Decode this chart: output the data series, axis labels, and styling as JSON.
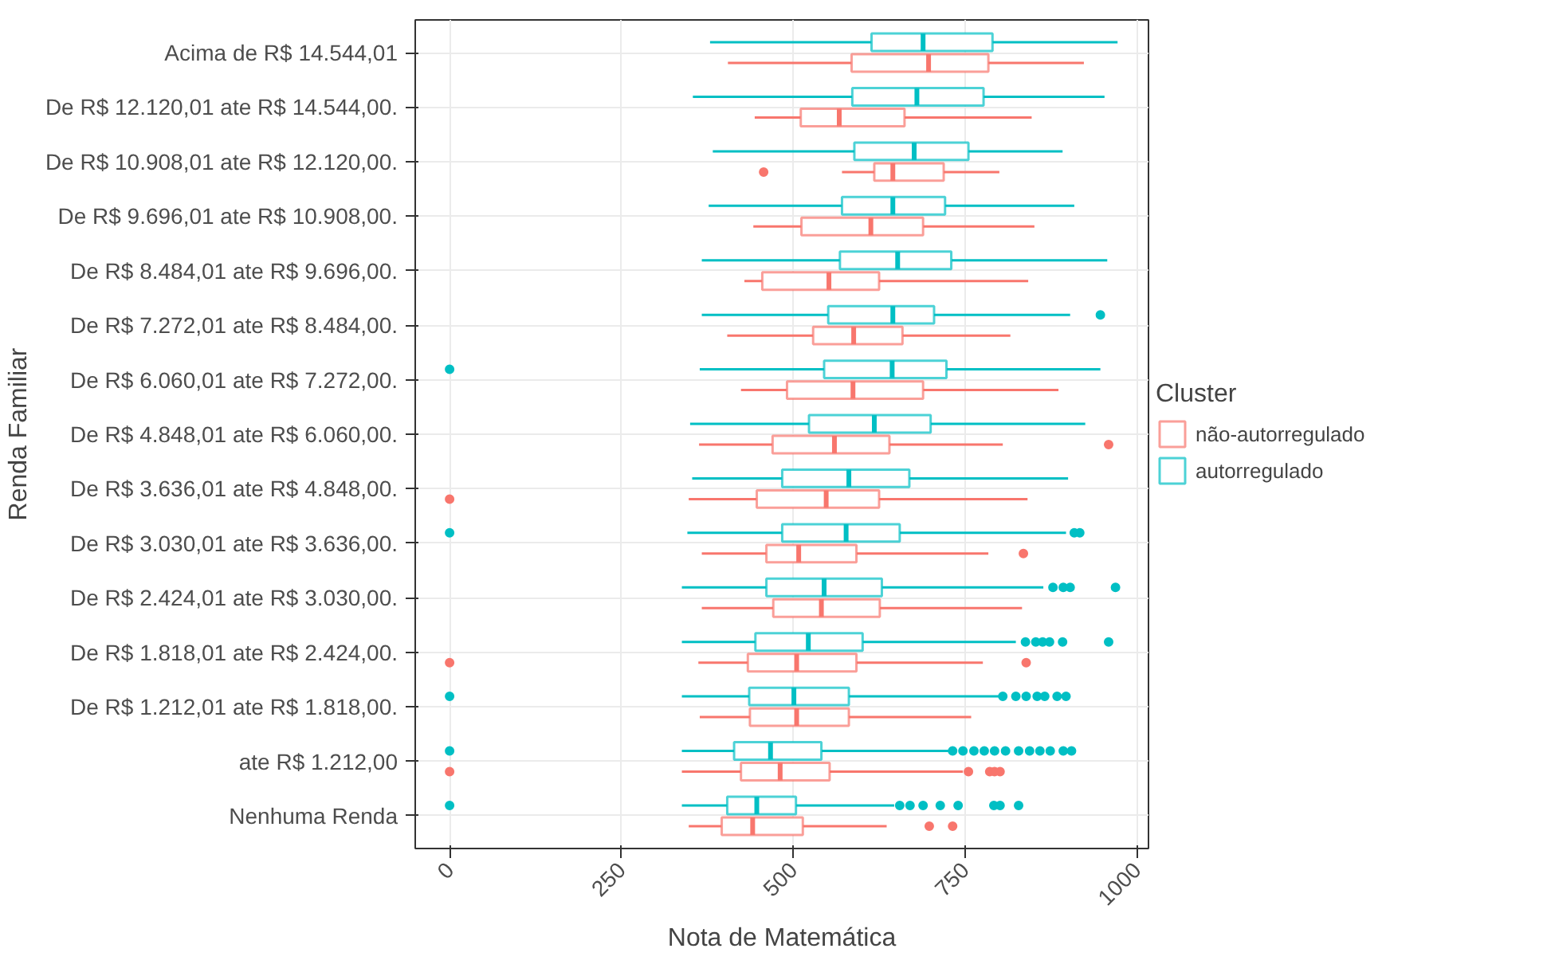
{
  "chart_data": {
    "type": "box",
    "orientation": "horizontal",
    "xlabel": "Nota de Matemática",
    "ylabel": "Renda Familiar",
    "legend_title": "Cluster",
    "legend": "right",
    "grid": true,
    "xlim": [
      -50,
      1017
    ],
    "xticks": [
      0,
      250,
      500,
      750,
      1000
    ],
    "categories": [
      "Acima de R$ 14.544,01",
      "De R$ 12.120,01 ate R$ 14.544,00.",
      "De R$ 10.908,01 ate R$ 12.120,00.",
      "De R$ 9.696,01 ate R$ 10.908,00.",
      "De R$ 8.484,01 ate R$ 9.696,00.",
      "De R$ 7.272,01 ate R$ 8.484,00.",
      "De R$ 6.060,01 ate R$ 7.272,00.",
      "De R$ 4.848,01 ate R$ 6.060,00.",
      "De R$ 3.636,01 ate R$ 4.848,00.",
      "De R$ 3.030,01 ate R$ 3.636,00.",
      "De R$ 2.424,01 ate R$ 3.030,00.",
      "De R$ 1.818,01 ate R$ 2.424,00.",
      "De R$ 1.212,01 ate R$ 1.818,00.",
      "ate R$ 1.212,00",
      "Nenhuma Renda"
    ],
    "series": [
      {
        "name": "não-autorregulado",
        "color": "#f8766d",
        "boxes": [
          {
            "low": 405,
            "q1": 585,
            "median": 697,
            "q3": 784,
            "high": 923
          },
          {
            "low": 444,
            "q1": 511,
            "median": 567,
            "q3": 662,
            "high": 847
          },
          {
            "low": 571,
            "q1": 618,
            "median": 645,
            "q3": 719,
            "high": 800,
            "outliers": [
              457
            ]
          },
          {
            "low": 442,
            "q1": 512,
            "median": 613,
            "q3": 689,
            "high": 851
          },
          {
            "low": 429,
            "q1": 455,
            "median": 552,
            "q3": 625,
            "high": 842
          },
          {
            "low": 404,
            "q1": 529,
            "median": 588,
            "q3": 659,
            "high": 816
          },
          {
            "low": 424,
            "q1": 491,
            "median": 587,
            "q3": 689,
            "high": 886
          },
          {
            "low": 363,
            "q1": 470,
            "median": 560,
            "q3": 640,
            "high": 805,
            "outliers": [
              959
            ]
          },
          {
            "low": 348,
            "q1": 447,
            "median": 548,
            "q3": 625,
            "high": 841,
            "outliers": [
              0
            ]
          },
          {
            "low": 367,
            "q1": 461,
            "median": 508,
            "q3": 592,
            "high": 784,
            "outliers": [
              835
            ]
          },
          {
            "low": 367,
            "q1": 471,
            "median": 541,
            "q3": 626,
            "high": 833
          },
          {
            "low": 362,
            "q1": 434,
            "median": 505,
            "q3": 592,
            "high": 776,
            "outliers": [
              0,
              839
            ]
          },
          {
            "low": 364,
            "q1": 437,
            "median": 505,
            "q3": 581,
            "high": 759
          },
          {
            "low": 338,
            "q1": 424,
            "median": 481,
            "q3": 553,
            "high": 747,
            "outliers": [
              0,
              755,
              786,
              793,
              801
            ]
          },
          {
            "low": 348,
            "q1": 396,
            "median": 441,
            "q3": 514,
            "high": 636,
            "outliers": [
              698,
              732
            ]
          }
        ]
      },
      {
        "name": "autorregulado",
        "color": "#00bfc4",
        "boxes": [
          {
            "low": 379,
            "q1": 614,
            "median": 689,
            "q3": 790,
            "high": 972
          },
          {
            "low": 354,
            "q1": 586,
            "median": 680,
            "q3": 777,
            "high": 953
          },
          {
            "low": 383,
            "q1": 589,
            "median": 676,
            "q3": 755,
            "high": 892
          },
          {
            "low": 377,
            "q1": 571,
            "median": 645,
            "q3": 721,
            "high": 909
          },
          {
            "low": 367,
            "q1": 568,
            "median": 652,
            "q3": 730,
            "high": 957
          },
          {
            "low": 367,
            "q1": 551,
            "median": 645,
            "q3": 705,
            "high": 903,
            "outliers": [
              947
            ]
          },
          {
            "low": 364,
            "q1": 545,
            "median": 644,
            "q3": 723,
            "high": 947,
            "outliers": [
              0
            ]
          },
          {
            "low": 350,
            "q1": 523,
            "median": 618,
            "q3": 700,
            "high": 925
          },
          {
            "low": 353,
            "q1": 484,
            "median": 581,
            "q3": 669,
            "high": 900
          },
          {
            "low": 346,
            "q1": 484,
            "median": 577,
            "q3": 655,
            "high": 897,
            "outliers": [
              0,
              909,
              917
            ]
          },
          {
            "low": 338,
            "q1": 461,
            "median": 545,
            "q3": 629,
            "high": 864,
            "outliers": [
              878,
              893,
              903,
              969
            ]
          },
          {
            "low": 338,
            "q1": 445,
            "median": 522,
            "q3": 601,
            "high": 824,
            "outliers": [
              838,
              853,
              863,
              873,
              892,
              959
            ]
          },
          {
            "low": 338,
            "q1": 436,
            "median": 501,
            "q3": 581,
            "high": 801,
            "outliers": [
              0,
              805,
              824,
              839,
              855,
              866,
              884,
              897
            ]
          },
          {
            "low": 338,
            "q1": 414,
            "median": 467,
            "q3": 541,
            "high": 728,
            "outliers": [
              0,
              732,
              747,
              763,
              778,
              793,
              809,
              828,
              844,
              859,
              874,
              893,
              905
            ]
          },
          {
            "low": 338,
            "q1": 404,
            "median": 447,
            "q3": 504,
            "high": 647,
            "outliers": [
              0,
              655,
              670,
              689,
              714,
              740,
              792,
              801,
              828
            ]
          }
        ]
      }
    ]
  }
}
